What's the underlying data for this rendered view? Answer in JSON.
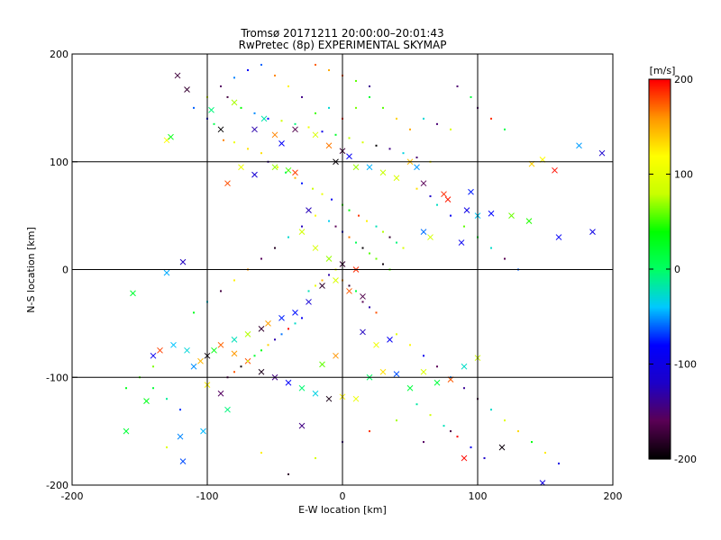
{
  "chart_data": {
    "type": "scatter",
    "title": "Tromsø 20171211 20:00:00–20:01:43",
    "subtitle": "RwPretec (8p) EXPERIMENTAL SKYMAP",
    "xlabel": "E-W location [km]",
    "ylabel": "N-S location [km]",
    "xlim": [
      -200,
      200
    ],
    "ylim": [
      -200,
      200
    ],
    "xticks": [
      -200,
      -100,
      0,
      100,
      200
    ],
    "yticks": [
      -200,
      -100,
      0,
      100,
      200
    ],
    "grid": true,
    "colorbar": {
      "label": "[m/s]",
      "range": [
        -200,
        200
      ],
      "ticks": [
        200,
        100,
        0,
        -100,
        -200
      ],
      "colors": [
        "#000000",
        "#5a0055",
        "#1c00c8",
        "#0000ff",
        "#00c8ff",
        "#00ff64",
        "#00ff00",
        "#c8ff00",
        "#ffff00",
        "#ff9600",
        "#ff0000"
      ]
    },
    "markers": {
      "dot": "radar echo (small point)",
      "cross": "radar echo (x marker)"
    },
    "series": [
      {
        "marker": "x",
        "points": [
          [
            -122,
            180
          ],
          [
            -115,
            167
          ],
          [
            -130,
            120
          ],
          [
            -127,
            123
          ],
          [
            -97,
            148
          ],
          [
            -90,
            130
          ],
          [
            -80,
            155
          ],
          [
            -65,
            130
          ],
          [
            -58,
            140
          ],
          [
            -50,
            125
          ],
          [
            -45,
            117
          ],
          [
            -35,
            130
          ],
          [
            -20,
            125
          ],
          [
            -10,
            115
          ],
          [
            0,
            110
          ],
          [
            5,
            105
          ],
          [
            -5,
            100
          ],
          [
            10,
            95
          ],
          [
            20,
            95
          ],
          [
            30,
            90
          ],
          [
            40,
            85
          ],
          [
            50,
            100
          ],
          [
            55,
            95
          ],
          [
            60,
            80
          ],
          [
            75,
            70
          ],
          [
            78,
            65
          ],
          [
            92,
            55
          ],
          [
            100,
            50
          ],
          [
            110,
            52
          ],
          [
            125,
            50
          ],
          [
            138,
            45
          ],
          [
            160,
            30
          ],
          [
            175,
            115
          ],
          [
            192,
            108
          ],
          [
            185,
            35
          ],
          [
            140,
            98
          ],
          [
            148,
            102
          ],
          [
            157,
            92
          ],
          [
            95,
            72
          ],
          [
            88,
            25
          ],
          [
            65,
            30
          ],
          [
            60,
            35
          ],
          [
            -40,
            92
          ],
          [
            -35,
            90
          ],
          [
            -25,
            55
          ],
          [
            -30,
            35
          ],
          [
            -20,
            20
          ],
          [
            -10,
            10
          ],
          [
            0,
            5
          ],
          [
            10,
            0
          ],
          [
            -5,
            -10
          ],
          [
            -15,
            -15
          ],
          [
            5,
            -20
          ],
          [
            15,
            -25
          ],
          [
            -25,
            -30
          ],
          [
            -35,
            -40
          ],
          [
            -45,
            -45
          ],
          [
            -55,
            -50
          ],
          [
            -60,
            -55
          ],
          [
            -70,
            -60
          ],
          [
            -80,
            -65
          ],
          [
            -90,
            -70
          ],
          [
            -95,
            -75
          ],
          [
            -100,
            -80
          ],
          [
            -105,
            -85
          ],
          [
            -110,
            -90
          ],
          [
            -115,
            -75
          ],
          [
            -125,
            -70
          ],
          [
            -135,
            -75
          ],
          [
            -140,
            -80
          ],
          [
            -155,
            -22
          ],
          [
            -130,
            -3
          ],
          [
            -118,
            7
          ],
          [
            -80,
            -78
          ],
          [
            -70,
            -85
          ],
          [
            -60,
            -95
          ],
          [
            -50,
            -100
          ],
          [
            -40,
            -105
          ],
          [
            -30,
            -110
          ],
          [
            -20,
            -115
          ],
          [
            -10,
            -120
          ],
          [
            0,
            -118
          ],
          [
            10,
            -120
          ],
          [
            20,
            -100
          ],
          [
            30,
            -95
          ],
          [
            40,
            -97
          ],
          [
            50,
            -110
          ],
          [
            60,
            -95
          ],
          [
            70,
            -105
          ],
          [
            80,
            -102
          ],
          [
            90,
            -90
          ],
          [
            100,
            -82
          ],
          [
            -100,
            -107
          ],
          [
            -90,
            -115
          ],
          [
            -85,
            -130
          ],
          [
            -120,
            -155
          ],
          [
            -118,
            -178
          ],
          [
            -103,
            -150
          ],
          [
            -30,
            -145
          ],
          [
            90,
            -175
          ],
          [
            118,
            -165
          ],
          [
            148,
            -198
          ],
          [
            -145,
            -122
          ],
          [
            -160,
            -150
          ],
          [
            -50,
            95
          ],
          [
            -65,
            88
          ],
          [
            -75,
            95
          ],
          [
            -85,
            80
          ],
          [
            -5,
            -80
          ],
          [
            -15,
            -88
          ],
          [
            15,
            -58
          ],
          [
            25,
            -70
          ],
          [
            35,
            -65
          ]
        ]
      },
      {
        "marker": "dot",
        "points": [
          [
            -110,
            150
          ],
          [
            -100,
            140
          ],
          [
            -95,
            135
          ],
          [
            -88,
            120
          ],
          [
            -80,
            118
          ],
          [
            -70,
            112
          ],
          [
            -60,
            108
          ],
          [
            -55,
            100
          ],
          [
            -48,
            95
          ],
          [
            -42,
            90
          ],
          [
            -35,
            85
          ],
          [
            -30,
            80
          ],
          [
            -22,
            75
          ],
          [
            -15,
            70
          ],
          [
            -8,
            65
          ],
          [
            0,
            60
          ],
          [
            5,
            55
          ],
          [
            12,
            50
          ],
          [
            18,
            45
          ],
          [
            25,
            40
          ],
          [
            30,
            35
          ],
          [
            35,
            30
          ],
          [
            40,
            25
          ],
          [
            45,
            20
          ],
          [
            -10,
            45
          ],
          [
            -5,
            40
          ],
          [
            0,
            35
          ],
          [
            5,
            30
          ],
          [
            10,
            25
          ],
          [
            15,
            20
          ],
          [
            20,
            15
          ],
          [
            25,
            10
          ],
          [
            30,
            5
          ],
          [
            35,
            0
          ],
          [
            -5,
            0
          ],
          [
            -10,
            -5
          ],
          [
            -15,
            -10
          ],
          [
            -20,
            -15
          ],
          [
            -25,
            -20
          ],
          [
            0,
            -10
          ],
          [
            5,
            -15
          ],
          [
            10,
            -20
          ],
          [
            15,
            -30
          ],
          [
            20,
            -35
          ],
          [
            25,
            -40
          ],
          [
            -30,
            -45
          ],
          [
            -35,
            -50
          ],
          [
            -40,
            -55
          ],
          [
            -45,
            -60
          ],
          [
            -50,
            -65
          ],
          [
            -55,
            -70
          ],
          [
            -60,
            -75
          ],
          [
            -65,
            -80
          ],
          [
            -70,
            -85
          ],
          [
            -75,
            -90
          ],
          [
            -80,
            -95
          ],
          [
            -85,
            -100
          ],
          [
            40,
            -60
          ],
          [
            50,
            -70
          ],
          [
            60,
            -80
          ],
          [
            70,
            -90
          ],
          [
            80,
            -100
          ],
          [
            90,
            -110
          ],
          [
            100,
            -120
          ],
          [
            110,
            -130
          ],
          [
            120,
            -140
          ],
          [
            130,
            -150
          ],
          [
            140,
            -160
          ],
          [
            150,
            -170
          ],
          [
            160,
            -180
          ],
          [
            55,
            -125
          ],
          [
            65,
            -135
          ],
          [
            75,
            -145
          ],
          [
            85,
            -155
          ],
          [
            95,
            -165
          ],
          [
            105,
            -175
          ],
          [
            -140,
            -90
          ],
          [
            -150,
            -100
          ],
          [
            -160,
            -110
          ],
          [
            -130,
            -165
          ],
          [
            -110,
            -40
          ],
          [
            -100,
            -30
          ],
          [
            -90,
            -20
          ],
          [
            -80,
            -10
          ],
          [
            -70,
            0
          ],
          [
            -60,
            10
          ],
          [
            -50,
            20
          ],
          [
            -40,
            30
          ],
          [
            -30,
            40
          ],
          [
            -20,
            50
          ],
          [
            100,
            150
          ],
          [
            110,
            140
          ],
          [
            120,
            130
          ],
          [
            95,
            160
          ],
          [
            85,
            170
          ],
          [
            -20,
            190
          ],
          [
            -10,
            185
          ],
          [
            0,
            180
          ],
          [
            10,
            175
          ],
          [
            20,
            170
          ],
          [
            -30,
            160
          ],
          [
            -40,
            170
          ],
          [
            -50,
            180
          ],
          [
            -60,
            190
          ],
          [
            -70,
            185
          ],
          [
            -80,
            178
          ],
          [
            -90,
            170
          ],
          [
            -100,
            160
          ],
          [
            -85,
            160
          ],
          [
            -75,
            150
          ],
          [
            -65,
            145
          ],
          [
            -55,
            140
          ],
          [
            -45,
            138
          ],
          [
            -35,
            135
          ],
          [
            -25,
            132
          ],
          [
            -15,
            128
          ],
          [
            -5,
            125
          ],
          [
            5,
            122
          ],
          [
            15,
            118
          ],
          [
            25,
            115
          ],
          [
            35,
            112
          ],
          [
            45,
            108
          ],
          [
            55,
            104
          ],
          [
            65,
            100
          ],
          [
            60,
            140
          ],
          [
            70,
            135
          ],
          [
            80,
            130
          ],
          [
            50,
            130
          ],
          [
            40,
            140
          ],
          [
            30,
            150
          ],
          [
            20,
            160
          ],
          [
            10,
            150
          ],
          [
            0,
            140
          ],
          [
            -10,
            150
          ],
          [
            -20,
            145
          ],
          [
            70,
            60
          ],
          [
            80,
            50
          ],
          [
            90,
            40
          ],
          [
            100,
            30
          ],
          [
            110,
            20
          ],
          [
            120,
            10
          ],
          [
            130,
            0
          ],
          [
            55,
            75
          ],
          [
            65,
            68
          ],
          [
            -120,
            -130
          ],
          [
            -130,
            -120
          ],
          [
            -140,
            -110
          ],
          [
            -60,
            -170
          ],
          [
            -40,
            -190
          ],
          [
            -20,
            -175
          ],
          [
            0,
            -160
          ],
          [
            20,
            -150
          ],
          [
            40,
            -140
          ],
          [
            60,
            -160
          ],
          [
            80,
            -150
          ]
        ]
      }
    ]
  }
}
